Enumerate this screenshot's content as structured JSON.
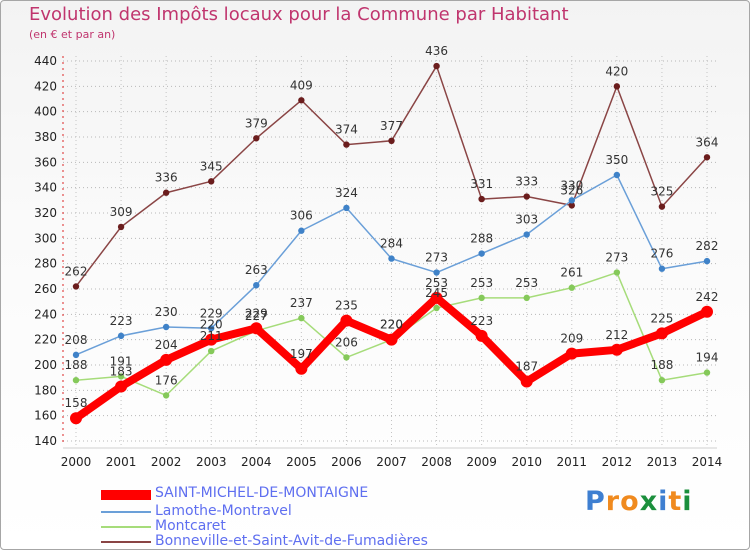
{
  "title": "Evolution des Impôts locaux pour la Commune par Habitant",
  "subtitle": "(en € et par an)",
  "logo": {
    "text": "Proxiti",
    "letters": [
      "P",
      "r",
      "o",
      "x",
      "i",
      "t",
      "i"
    ],
    "colors": [
      "#3e7fd1",
      "#f08a1e",
      "#f08a1e",
      "#1b8f3c",
      "#3e7fd1",
      "#f08a1e",
      "#1b8f3c"
    ]
  },
  "chart_data": {
    "type": "line",
    "title": "Evolution des Impôts locaux pour la Commune par Habitant",
    "subtitle": "(en € et par an)",
    "categories": [
      "2000",
      "2001",
      "2002",
      "2003",
      "2004",
      "2005",
      "2006",
      "2007",
      "2008",
      "2009",
      "2010",
      "2011",
      "2012",
      "2013",
      "2014"
    ],
    "ylim": [
      140,
      440
    ],
    "yticks": [
      "140",
      "160",
      "180",
      "200",
      "220",
      "240",
      "260",
      "280",
      "300",
      "320",
      "340",
      "360",
      "380",
      "400",
      "420",
      "440"
    ],
    "legend_position": "bottom-left",
    "series": [
      {
        "name": "SAINT-MICHEL-DE-MONTAIGNE",
        "values": [
          158,
          183,
          204,
          220,
          229,
          197,
          235,
          220,
          253,
          223,
          187,
          209,
          212,
          225,
          242
        ],
        "labels": [
          "158",
          "183",
          "204",
          "220",
          "229",
          "197",
          "235",
          "220",
          "253",
          "223",
          "187",
          "209",
          "212",
          "225",
          "242"
        ],
        "color": "#ff0000",
        "width": 8,
        "marker_color": "#ff0000",
        "marker_r": 6
      },
      {
        "name": "Lamothe-Montravel",
        "values": [
          208,
          223,
          230,
          229,
          263,
          306,
          324,
          284,
          273,
          288,
          303,
          330,
          350,
          276,
          282
        ],
        "labels": [
          "208",
          "223",
          "230",
          "229",
          "263",
          "306",
          "324",
          "284",
          "273",
          "288",
          "303",
          "330",
          "350",
          "276",
          "282"
        ],
        "color": "#6a9fd8",
        "width": 1.5,
        "marker_color": "#3f82c8",
        "marker_r": 3.2
      },
      {
        "name": "Montcaret",
        "values": [
          188,
          191,
          176,
          211,
          227,
          237,
          206,
          220,
          245,
          253,
          253,
          261,
          273,
          188,
          194
        ],
        "labels": [
          "188",
          "191",
          "176",
          "211",
          "227",
          "237",
          "206",
          "220",
          "245",
          "253",
          "253",
          "261",
          "273",
          "188",
          "194"
        ],
        "color": "#a6dc7a",
        "width": 1.5,
        "marker_color": "#85c95a",
        "marker_r": 3.2
      },
      {
        "name": "Bonneville-et-Saint-Avit-de-Fumadières",
        "values": [
          262,
          309,
          336,
          345,
          379,
          409,
          374,
          377,
          436,
          331,
          333,
          326,
          420,
          325,
          364
        ],
        "labels": [
          "262",
          "309",
          "336",
          "345",
          "379",
          "409",
          "374",
          "377",
          "436",
          "331",
          "333",
          "326",
          "420",
          "325",
          "364"
        ],
        "color": "#8a4545",
        "width": 1.5,
        "marker_color": "#6b1d1d",
        "marker_r": 3.2
      }
    ]
  }
}
